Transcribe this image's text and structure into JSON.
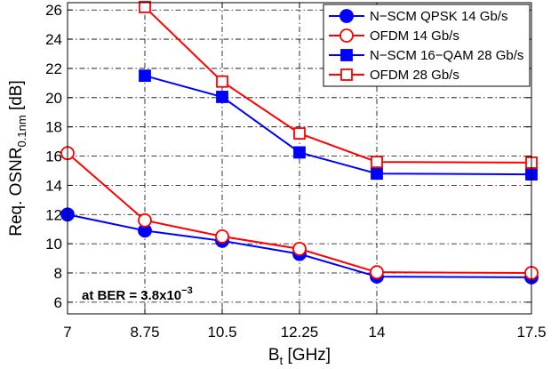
{
  "chart_data": {
    "type": "line",
    "x": [
      7,
      8.75,
      10.5,
      12.25,
      14,
      17.5
    ],
    "x_tick_labels": [
      "7",
      "8.75",
      "10.5",
      "12.25",
      "14",
      "17.5"
    ],
    "xlim": [
      7,
      17.5
    ],
    "ylim": [
      5.2,
      26.5
    ],
    "y_ticks": [
      6,
      8,
      10,
      12,
      14,
      16,
      18,
      20,
      22,
      24,
      26
    ],
    "xlabel": {
      "main": "B",
      "sub": "t",
      "rest": " [GHz]"
    },
    "ylabel": {
      "main": "Req. OSNR",
      "sub": "0.1nm",
      "rest": " [dB]"
    },
    "grid": true,
    "legend_position": "top-right",
    "annotation": {
      "main": "at BER = 3.8x10",
      "sup": "−3"
    },
    "series": [
      {
        "name": "N−SCM QPSK 14 Gb/s",
        "color": "#0000ff",
        "marker": "circle",
        "filled": true,
        "points": [
          [
            7,
            12.0
          ],
          [
            8.75,
            10.9
          ],
          [
            10.5,
            10.2
          ],
          [
            12.25,
            9.3
          ],
          [
            14,
            7.75
          ],
          [
            17.5,
            7.7
          ]
        ]
      },
      {
        "name": "OFDM 14 Gb/s",
        "color": "#ff0000",
        "marker": "circle",
        "filled": false,
        "points": [
          [
            7,
            16.2
          ],
          [
            8.75,
            11.6
          ],
          [
            10.5,
            10.5
          ],
          [
            12.25,
            9.65
          ],
          [
            14,
            8.05
          ],
          [
            17.5,
            8.0
          ]
        ]
      },
      {
        "name": "N−SCM 16−QAM 28 Gb/s",
        "color": "#0000ff",
        "marker": "square",
        "filled": true,
        "points": [
          [
            8.75,
            21.5
          ],
          [
            10.5,
            20.05
          ],
          [
            12.25,
            16.25
          ],
          [
            14,
            14.8
          ],
          [
            17.5,
            14.75
          ]
        ]
      },
      {
        "name": "OFDM 28 Gb/s",
        "color": "#ff0000",
        "marker": "square",
        "filled": false,
        "points": [
          [
            8.75,
            26.2
          ],
          [
            10.5,
            21.1
          ],
          [
            12.25,
            17.55
          ],
          [
            14,
            15.6
          ],
          [
            17.5,
            15.55
          ]
        ]
      }
    ]
  }
}
